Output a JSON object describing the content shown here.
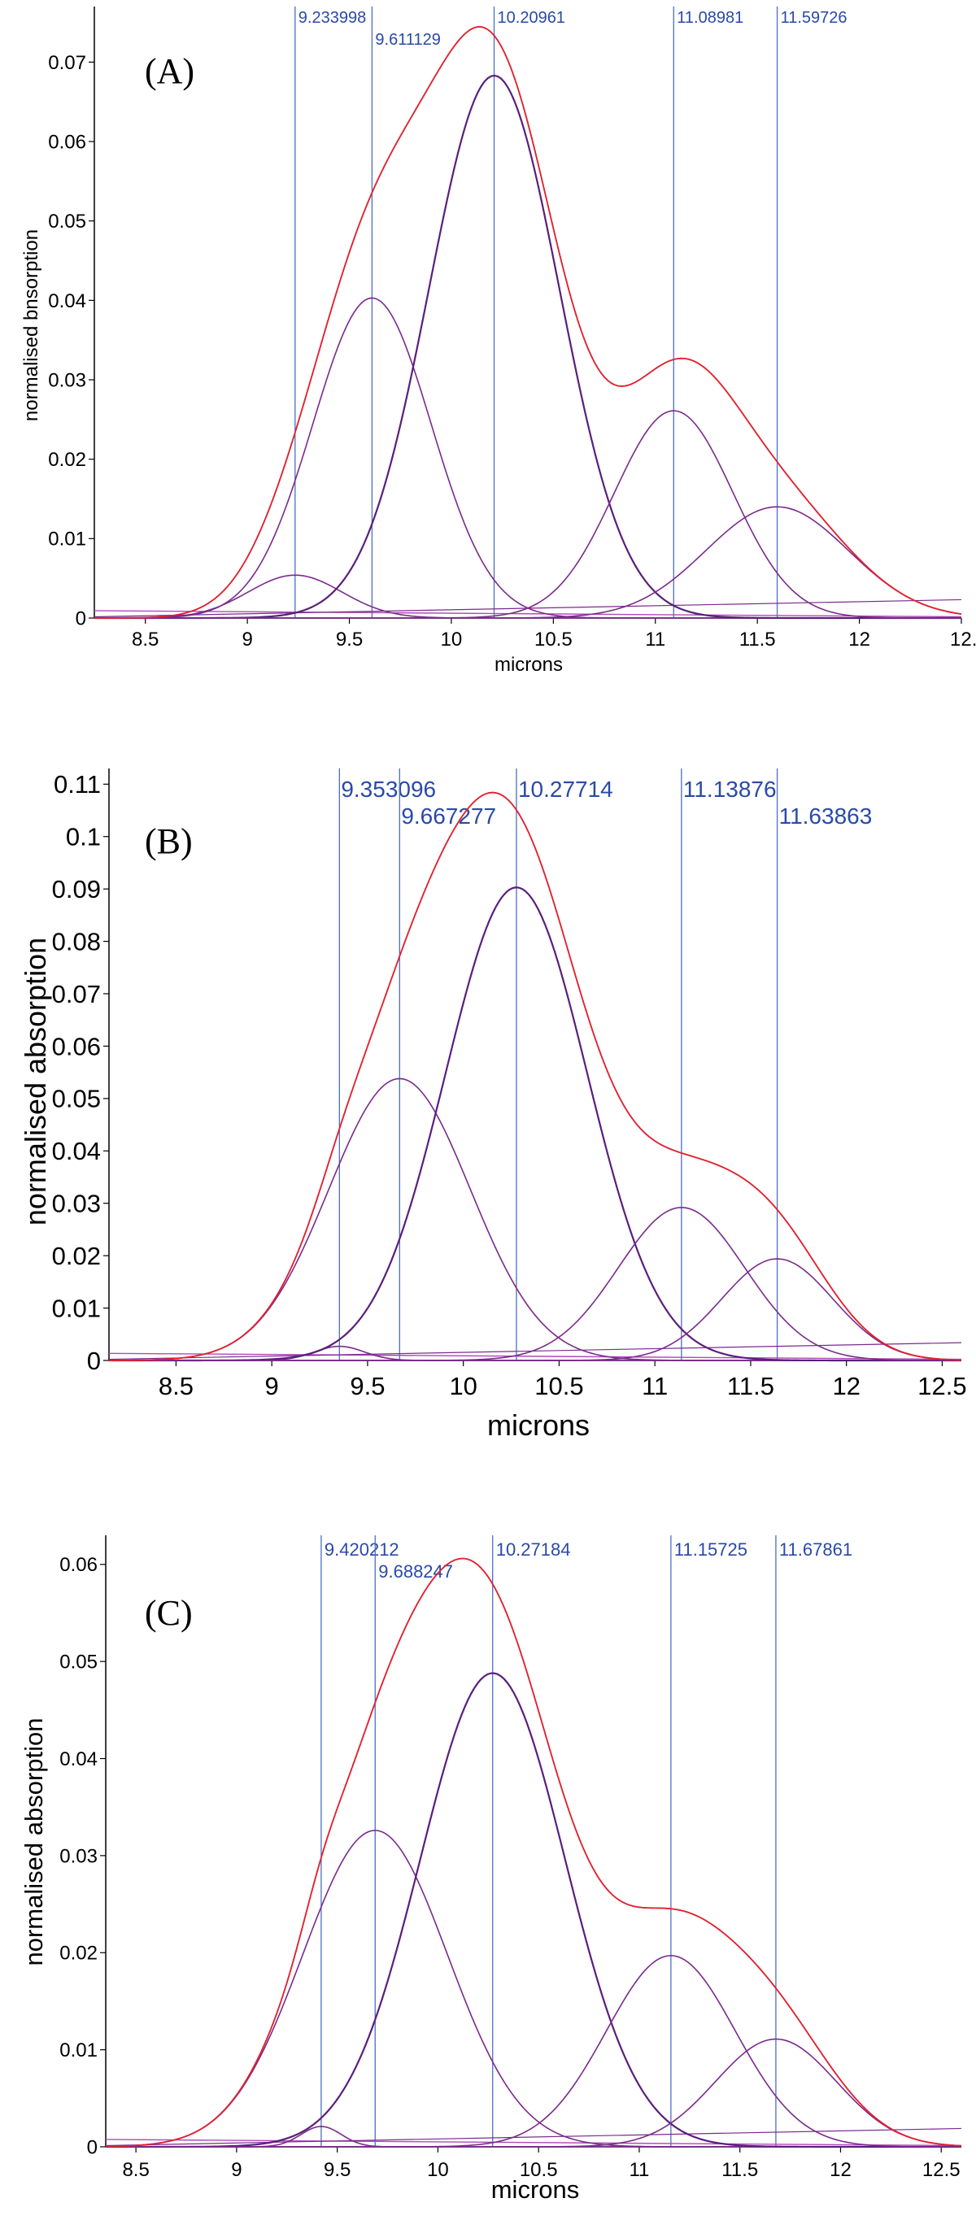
{
  "figure": {
    "colors": {
      "axis": "#000000",
      "peak_line": "#4a6fc4",
      "peak_label": "#2a4aa8",
      "component": "#7a2a8c",
      "component_strong": "#5a1f7a",
      "fit": "#e8202a",
      "data": "#3a6fd8",
      "baseline": "#b04ab8"
    }
  },
  "chart_data": [
    {
      "type": "line",
      "panel": "(A)",
      "xlabel": "microns",
      "ylabel": "normalised bnsorption",
      "xlim": [
        8.25,
        12.5
      ],
      "ylim": [
        0,
        0.077
      ],
      "xticks": [
        "8.5",
        "9",
        "9.5",
        "10",
        "10.5",
        "11",
        "11.5",
        "12",
        "12."
      ],
      "yticks": [
        "0",
        "0.01",
        "0.02",
        "0.03",
        "0.04",
        "0.05",
        "0.06",
        "0.07"
      ],
      "peak_labels": [
        "9.233998",
        "9.611129",
        "10.20961",
        "11.08981",
        "11.59726"
      ],
      "peaks": [
        9.233998,
        9.611129,
        10.20961,
        11.08981,
        11.59726
      ],
      "components": [
        {
          "center": 9.234,
          "amplitude": 0.0054,
          "sigma": 0.23
        },
        {
          "center": 9.611,
          "amplitude": 0.0403,
          "sigma": 0.29
        },
        {
          "center": 10.21,
          "amplitude": 0.0683,
          "sigma": 0.32
        },
        {
          "center": 11.09,
          "amplitude": 0.0261,
          "sigma": 0.29
        },
        {
          "center": 11.597,
          "amplitude": 0.014,
          "sigma": 0.35
        }
      ],
      "grid": false,
      "legend": "none"
    },
    {
      "type": "line",
      "panel": "(B)",
      "xlabel": "microns",
      "ylabel": "normalised absorption",
      "xlim": [
        8.15,
        12.6
      ],
      "ylim": [
        0,
        0.113
      ],
      "xticks": [
        "8.5",
        "9",
        "9.5",
        "10",
        "10.5",
        "11",
        "11.5",
        "12",
        "12.5"
      ],
      "yticks": [
        "0",
        "0.01",
        "0.02",
        "0.03",
        "0.04",
        "0.05",
        "0.06",
        "0.07",
        "0.08",
        "0.09",
        "0.1",
        "0.11"
      ],
      "peak_labels": [
        "9.353096",
        "9.667277",
        "10.27714",
        "11.13876",
        "11.63863"
      ],
      "peaks": [
        9.353096,
        9.667277,
        10.27714,
        11.13876,
        11.63863
      ],
      "components": [
        {
          "center": 9.353,
          "amplitude": 0.0027,
          "sigma": 0.13
        },
        {
          "center": 9.667,
          "amplitude": 0.0538,
          "sigma": 0.37
        },
        {
          "center": 10.277,
          "amplitude": 0.0903,
          "sigma": 0.37
        },
        {
          "center": 11.139,
          "amplitude": 0.0292,
          "sigma": 0.33
        },
        {
          "center": 11.639,
          "amplitude": 0.0194,
          "sigma": 0.29
        }
      ],
      "grid": false,
      "legend": "none"
    },
    {
      "type": "line",
      "panel": "(C)",
      "xlabel": "microns",
      "ylabel": "normalised absorption",
      "xlim": [
        8.35,
        12.6
      ],
      "ylim": [
        0,
        0.063
      ],
      "xticks": [
        "8.5",
        "9",
        "9.5",
        "10",
        "10.5",
        "11",
        "11.5",
        "12",
        "12.5"
      ],
      "yticks": [
        "0",
        "0.01",
        "0.02",
        "0.03",
        "0.04",
        "0.05",
        "0.06"
      ],
      "peak_labels": [
        "9.420212",
        "9.688247",
        "10.27184",
        "11.15725",
        "11.67861"
      ],
      "peaks": [
        9.420212,
        9.688247,
        10.27184,
        11.15725,
        11.67861
      ],
      "components": [
        {
          "center": 9.42,
          "amplitude": 0.0021,
          "sigma": 0.1
        },
        {
          "center": 9.688,
          "amplitude": 0.0326,
          "sigma": 0.36
        },
        {
          "center": 10.272,
          "amplitude": 0.0488,
          "sigma": 0.36
        },
        {
          "center": 11.157,
          "amplitude": 0.0197,
          "sigma": 0.32
        },
        {
          "center": 11.679,
          "amplitude": 0.0111,
          "sigma": 0.3
        }
      ],
      "grid": false,
      "legend": "none"
    }
  ]
}
